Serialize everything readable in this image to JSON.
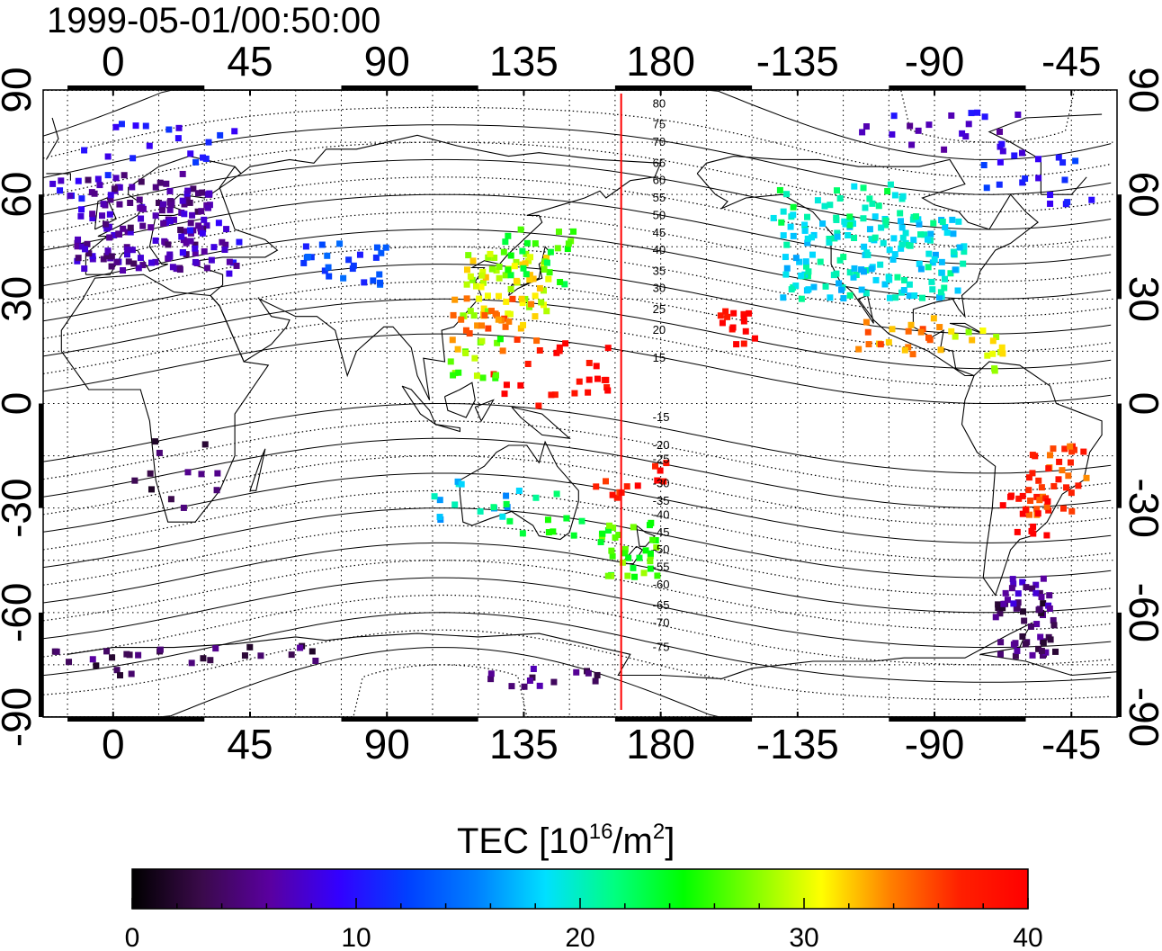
{
  "title": "1999-05-01/00:50:00",
  "x_ticks": [
    {
      "label": "0",
      "lon": 0
    },
    {
      "label": "45",
      "lon": 45
    },
    {
      "label": "90",
      "lon": 90
    },
    {
      "label": "135",
      "lon": 135
    },
    {
      "label": "180",
      "lon": 180
    },
    {
      "label": "-135",
      "lon": 225
    },
    {
      "label": "-90",
      "lon": 270
    },
    {
      "label": "-45",
      "lon": 315
    }
  ],
  "y_ticks": [
    {
      "label": "90",
      "lat": 90
    },
    {
      "label": "60",
      "lat": 60
    },
    {
      "label": "30",
      "lat": 30
    },
    {
      "label": "0",
      "lat": 0
    },
    {
      "label": "-30",
      "lat": -30
    },
    {
      "label": "-60",
      "lat": -60
    },
    {
      "label": "-90",
      "lat": -90
    }
  ],
  "lon_range": [
    -23,
    330
  ],
  "lat_range": [
    -90,
    90
  ],
  "meridian_line_lon": 167,
  "meridian_line_color": "#ff0000",
  "mag_lat_labels": [
    {
      "label": "80",
      "lat": 86
    },
    {
      "label": "75",
      "lat": 80
    },
    {
      "label": "70",
      "lat": 75
    },
    {
      "label": "65",
      "lat": 69
    },
    {
      "label": "60",
      "lat": 64
    },
    {
      "label": "55",
      "lat": 59
    },
    {
      "label": "50",
      "lat": 54
    },
    {
      "label": "45",
      "lat": 49
    },
    {
      "label": "40",
      "lat": 44
    },
    {
      "label": "35",
      "lat": 38
    },
    {
      "label": "30",
      "lat": 33
    },
    {
      "label": "25",
      "lat": 27
    },
    {
      "label": "20",
      "lat": 21
    },
    {
      "label": "15",
      "lat": 13
    },
    {
      "label": "-15",
      "lat": -4
    },
    {
      "label": "-20",
      "lat": -12
    },
    {
      "label": "-25",
      "lat": -16
    },
    {
      "label": "-30",
      "lat": -23
    },
    {
      "label": "-35",
      "lat": -28
    },
    {
      "label": "-40",
      "lat": -32
    },
    {
      "label": "-45",
      "lat": -37
    },
    {
      "label": "-50",
      "lat": -42
    },
    {
      "label": "-55",
      "lat": -47
    },
    {
      "label": "-60",
      "lat": -52
    },
    {
      "label": "-65",
      "lat": -58
    },
    {
      "label": "-70",
      "lat": -63
    },
    {
      "label": "-75",
      "lat": -70
    }
  ],
  "colorbar": {
    "title": "TEC  [10",
    "title_sup1": "16",
    "title_mid": "/m",
    "title_sup2": "2",
    "title_end": "]",
    "min": 0,
    "max": 40,
    "ticks": [
      {
        "label": "0",
        "value": 0
      },
      {
        "label": "10",
        "value": 10
      },
      {
        "label": "20",
        "value": 20
      },
      {
        "label": "30",
        "value": 30
      },
      {
        "label": "40",
        "value": 40
      }
    ],
    "colors": [
      "#000000",
      "#3a0a4a",
      "#5a00a0",
      "#3300ff",
      "#0040ff",
      "#0080ff",
      "#00e0ff",
      "#00ff80",
      "#00ff00",
      "#80ff00",
      "#ffff00",
      "#ff8000",
      "#ff2000",
      "#ff0000"
    ]
  },
  "tec_clusters": [
    {
      "lon": 10,
      "lat": 52,
      "w": 22,
      "h": 14,
      "tec": 6,
      "n": 140
    },
    {
      "lon": -10,
      "lat": 60,
      "w": 10,
      "h": 6,
      "tec": 9,
      "n": 12
    },
    {
      "lon": 30,
      "lat": 45,
      "w": 12,
      "h": 8,
      "tec": 8,
      "n": 25
    },
    {
      "lon": 15,
      "lat": 75,
      "w": 25,
      "h": 6,
      "tec": 10,
      "n": 18
    },
    {
      "lon": 75,
      "lat": 40,
      "w": 15,
      "h": 6,
      "tec": 12,
      "n": 25
    },
    {
      "lon": 130,
      "lat": 35,
      "w": 15,
      "h": 10,
      "tec": 30,
      "n": 60
    },
    {
      "lon": 140,
      "lat": 42,
      "w": 12,
      "h": 8,
      "tec": 25,
      "n": 25
    },
    {
      "lon": 125,
      "lat": 23,
      "w": 15,
      "h": 8,
      "tec": 34,
      "n": 30
    },
    {
      "lon": 145,
      "lat": 8,
      "w": 20,
      "h": 10,
      "tec": 40,
      "n": 25
    },
    {
      "lon": 120,
      "lat": 10,
      "w": 10,
      "h": 10,
      "tec": 27,
      "n": 15
    },
    {
      "lon": 120,
      "lat": -28,
      "w": 15,
      "h": 6,
      "tec": 18,
      "n": 14
    },
    {
      "lon": 140,
      "lat": -30,
      "w": 15,
      "h": 8,
      "tec": 23,
      "n": 12
    },
    {
      "lon": 170,
      "lat": -42,
      "w": 10,
      "h": 8,
      "tec": 26,
      "n": 35
    },
    {
      "lon": 165,
      "lat": -25,
      "w": 8,
      "h": 3,
      "tec": 38,
      "n": 8
    },
    {
      "lon": 182,
      "lat": -20,
      "w": 5,
      "h": 3,
      "tec": 39,
      "n": 5
    },
    {
      "lon": 205,
      "lat": 22,
      "w": 6,
      "h": 5,
      "tec": 40,
      "n": 15
    },
    {
      "lon": 250,
      "lat": 42,
      "w": 30,
      "h": 12,
      "tec": 19,
      "n": 160
    },
    {
      "lon": 240,
      "lat": 57,
      "w": 25,
      "h": 6,
      "tec": 21,
      "n": 30
    },
    {
      "lon": 260,
      "lat": 20,
      "w": 15,
      "h": 6,
      "tec": 34,
      "n": 20
    },
    {
      "lon": 285,
      "lat": 15,
      "w": 10,
      "h": 6,
      "tec": 30,
      "n": 14
    },
    {
      "lon": 310,
      "lat": -22,
      "w": 10,
      "h": 10,
      "tec": 36,
      "n": 40
    },
    {
      "lon": 300,
      "lat": -32,
      "w": 8,
      "h": 6,
      "tec": 40,
      "n": 14
    },
    {
      "lon": 300,
      "lat": -65,
      "w": 10,
      "h": 8,
      "tec": 4,
      "n": 40
    },
    {
      "lon": 300,
      "lat": -55,
      "w": 8,
      "h": 5,
      "tec": 6,
      "n": 20
    },
    {
      "lon": 20,
      "lat": -20,
      "w": 15,
      "h": 10,
      "tec": 3,
      "n": 12
    },
    {
      "lon": -10,
      "lat": -75,
      "w": 20,
      "h": 4,
      "tec": 4,
      "n": 14
    },
    {
      "lon": 40,
      "lat": -72,
      "w": 30,
      "h": 3,
      "tec": 4,
      "n": 14
    },
    {
      "lon": 140,
      "lat": -80,
      "w": 20,
      "h": 4,
      "tec": 5,
      "n": 14
    },
    {
      "lon": 270,
      "lat": 78,
      "w": 30,
      "h": 6,
      "tec": 8,
      "n": 20
    },
    {
      "lon": 305,
      "lat": 65,
      "w": 20,
      "h": 8,
      "tec": 10,
      "n": 20
    }
  ]
}
